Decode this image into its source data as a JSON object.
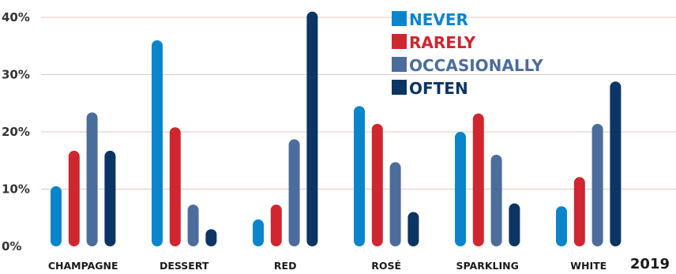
{
  "chart_data": {
    "type": "bar",
    "categories": [
      "CHAMPAGNE",
      "DESSERT",
      "RED",
      "ROSÉ",
      "SPARKLING",
      "WHITE"
    ],
    "series": [
      {
        "name": "NEVER",
        "color": "#0a85cc",
        "values": [
          10.5,
          36,
          4.7,
          24.5,
          20,
          7
        ]
      },
      {
        "name": "RARELY",
        "color": "#cf2630",
        "values": [
          16.7,
          20.8,
          7.3,
          21.4,
          23.2,
          12.1
        ]
      },
      {
        "name": "OCCASIONALLY",
        "color": "#4c6d9c",
        "values": [
          23.4,
          7.3,
          18.7,
          14.7,
          16,
          21.4
        ]
      },
      {
        "name": "OFTEN",
        "color": "#0b3564",
        "values": [
          16.7,
          3,
          41,
          6,
          7.5,
          28.8
        ]
      }
    ],
    "yticks": [
      "0%",
      "10%",
      "20%",
      "30%",
      "40%"
    ],
    "ylim": [
      0,
      40
    ],
    "grid": true,
    "legend_position": "top-center",
    "annotation": "2019"
  }
}
